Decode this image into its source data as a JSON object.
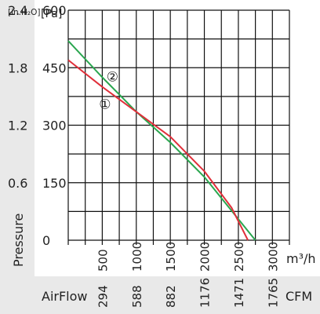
{
  "chart_data": {
    "type": "line",
    "title": "",
    "ylabel": "Pressure",
    "y_unit_primary": "[Pa]",
    "y_unit_secondary": "[in.H₂O]",
    "y_ticks_pa": [
      0,
      150,
      300,
      450,
      600
    ],
    "y_ticks_inh2o": [
      "0.6",
      "1.2",
      "1.8",
      "2.4"
    ],
    "ylim": [
      0,
      600
    ],
    "x_unit": "m³/h",
    "x_ticks_m3h": [
      500,
      1000,
      1500,
      2000,
      2500,
      3000
    ],
    "xlim": [
      0,
      3250
    ],
    "airflow_label": "AirFlow",
    "airflow_unit": "CFM",
    "x_ticks_cfm": [
      "294",
      "588",
      "882",
      "1176",
      "1471",
      "1765"
    ],
    "grid": true,
    "series": [
      {
        "name": "①",
        "color": "#e02f3a",
        "points": [
          [
            0,
            470
          ],
          [
            500,
            400
          ],
          [
            1000,
            335
          ],
          [
            1500,
            270
          ],
          [
            2000,
            180
          ],
          [
            2400,
            85
          ],
          [
            2640,
            0
          ]
        ]
      },
      {
        "name": "②",
        "color": "#2aa64f",
        "points": [
          [
            0,
            520
          ],
          [
            500,
            425
          ],
          [
            1000,
            335
          ],
          [
            1500,
            255
          ],
          [
            2000,
            165
          ],
          [
            2500,
            55
          ],
          [
            2750,
            0
          ]
        ]
      }
    ]
  }
}
